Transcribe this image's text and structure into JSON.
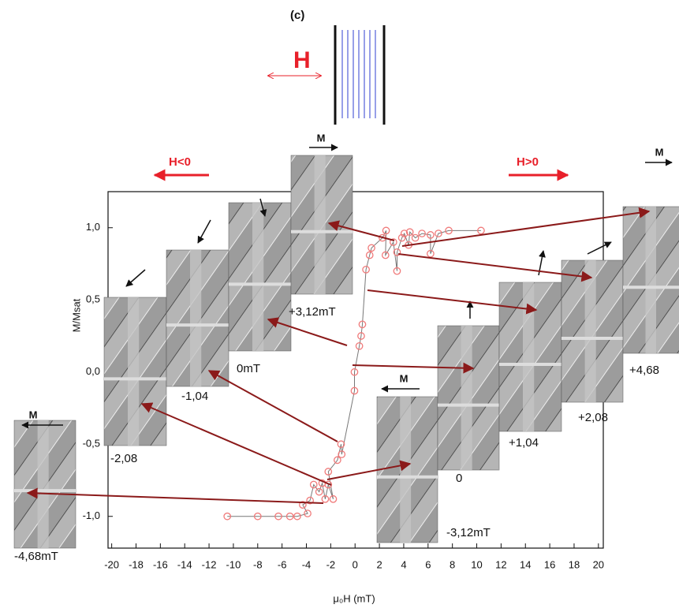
{
  "chart_data": {
    "type": "line",
    "panel_label": "(c)",
    "field_symbol": "H",
    "negative_field_label": "H<0",
    "positive_field_label": "H>0",
    "magnetization_label": "M",
    "xlabel": "μ₀H (mT)",
    "ylabel": "M/Msat",
    "xlim": [
      -20.3,
      20.4
    ],
    "ylim": [
      -1.22,
      1.25
    ],
    "xticks": [
      -20,
      -18,
      -16,
      -14,
      -12,
      -10,
      -8,
      -6,
      -4,
      -2,
      0,
      2,
      4,
      6,
      8,
      10,
      12,
      14,
      16,
      18,
      20
    ],
    "yticks": [
      {
        "value": -1,
        "label": "-1,0"
      },
      {
        "value": -0.5,
        "label": "-0,5"
      },
      {
        "value": 0,
        "label": "0,0"
      },
      {
        "value": 0.5,
        "label": "0,5"
      },
      {
        "value": 1,
        "label": "1,0"
      }
    ],
    "color": "#f07a7a",
    "x": [
      -10.5,
      -8.0,
      -6.3,
      -5.35,
      -4.75,
      -3.9,
      -4.3,
      -3.7,
      -3.4,
      -2.95,
      -2.7,
      -2.45,
      -2.2,
      -1.8,
      -2.2,
      -1.45,
      -1.15,
      -1.1,
      -0.05,
      -0.05,
      0.35,
      0.5,
      0.6,
      0.9,
      1.2,
      1.35,
      2.25,
      2.55,
      2.5,
      3.15,
      3.45,
      3.45,
      3.85,
      4.05,
      4.4,
      4.5,
      4.95,
      5.5,
      6.2,
      6.2,
      6.85,
      7.7,
      10.35
    ],
    "values": [
      -1.0,
      -1.0,
      -1.0,
      -1.0,
      -1.0,
      -0.98,
      -0.92,
      -0.89,
      -0.78,
      -0.83,
      -0.77,
      -0.88,
      -0.78,
      -0.88,
      -0.69,
      -0.61,
      -0.5,
      -0.57,
      -0.13,
      0.0,
      0.18,
      0.25,
      0.33,
      0.71,
      0.81,
      0.86,
      0.93,
      0.98,
      0.81,
      0.9,
      0.7,
      0.83,
      0.93,
      0.96,
      0.88,
      0.97,
      0.93,
      0.96,
      0.95,
      0.82,
      0.96,
      0.98,
      0.98
    ],
    "image_labels": [
      "-4,68mT",
      "-2,08",
      "-1,04",
      "0mT",
      "+3,12mT",
      "-3,12mT",
      "0",
      "+1,04",
      "+2,08",
      "+4,68"
    ]
  }
}
